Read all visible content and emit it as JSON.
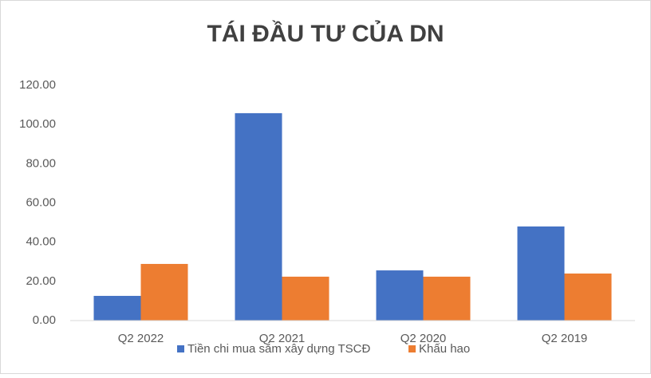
{
  "chart_data": {
    "type": "bar",
    "title": "TÁI ĐẦU TƯ CỦA DN",
    "categories": [
      "Q2 2022",
      "Q2 2021",
      "Q2 2020",
      "Q2 2019"
    ],
    "series": [
      {
        "name": "Tiền chi mua sắm xây dựng TSCĐ",
        "color": "#4472c4",
        "values": [
          12.6,
          105.8,
          25.6,
          48
        ]
      },
      {
        "name": "Khấu hao",
        "color": "#ed7d31",
        "values": [
          28.9,
          22.4,
          22.4,
          24
        ]
      }
    ],
    "ylim": [
      0,
      120
    ],
    "yticks": [
      {
        "value": 0,
        "label": "0.00"
      },
      {
        "value": 20,
        "label": "20.00"
      },
      {
        "value": 40,
        "label": "40.00"
      },
      {
        "value": 60,
        "label": "60.00"
      },
      {
        "value": 80,
        "label": "80.00"
      },
      {
        "value": 100,
        "label": "100.00"
      },
      {
        "value": 120,
        "label": "120.00"
      }
    ],
    "grid": false,
    "legend": "bottom"
  }
}
